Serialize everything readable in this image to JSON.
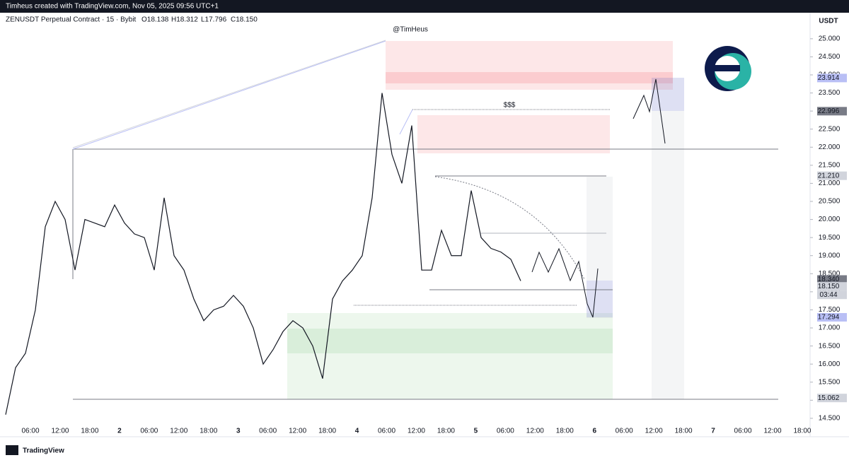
{
  "chart_data": {
    "type": "line",
    "banner": "Timheus created with TradingView.com, Nov 05, 2025 09:56 UTC+1",
    "title": "ZENUSDT Perpetual Contract · 15 · Bybit",
    "ohlc": [
      "O18.138",
      "H18.312",
      "L17.796",
      "C18.150"
    ],
    "currency": "USDT",
    "author": "@TimHeus",
    "annotation": "$$$",
    "brand": "TradingView",
    "countdown": "03:44",
    "color": "#131722",
    "ylim": [
      13.99,
      25.72
    ],
    "yticks": [
      {
        "value": 14.5,
        "label": "14.500"
      },
      {
        "value": 15,
        "label": "15.000"
      },
      {
        "value": 15.5,
        "label": "15.500"
      },
      {
        "value": 16,
        "label": "16.000"
      },
      {
        "value": 16.5,
        "label": "16.500"
      },
      {
        "value": 17,
        "label": "17.000"
      },
      {
        "value": 17.5,
        "label": "17.500"
      },
      {
        "value": 18,
        "label": "18.000"
      },
      {
        "value": 18.5,
        "label": "18.500"
      },
      {
        "value": 19,
        "label": "19.000"
      },
      {
        "value": 19.5,
        "label": "19.500"
      },
      {
        "value": 20,
        "label": "20.000"
      },
      {
        "value": 20.5,
        "label": "20.500"
      },
      {
        "value": 21,
        "label": "21.000"
      },
      {
        "value": 21.5,
        "label": "21.500"
      },
      {
        "value": 22,
        "label": "22.000"
      },
      {
        "value": 22.5,
        "label": "22.500"
      },
      {
        "value": 23,
        "label": "23.000"
      },
      {
        "value": 23.5,
        "label": "23.500"
      },
      {
        "value": 24,
        "label": "24.000"
      },
      {
        "value": 24.5,
        "label": "24.500"
      },
      {
        "value": 25,
        "label": "25.000"
      }
    ],
    "xticks": [
      "06:00",
      "12:00",
      "18:00",
      "2",
      "06:00",
      "12:00",
      "18:00",
      "3",
      "06:00",
      "12:00",
      "18:00",
      "4",
      "06:00",
      "12:00",
      "18:00",
      "5",
      "06:00",
      "12:00",
      "18:00",
      "6",
      "06:00",
      "12:00",
      "18:00",
      "7",
      "06:00",
      "12:00",
      "18:00"
    ],
    "price_labels": [
      {
        "value": 23.914,
        "label": "23.914",
        "color": "#b9bff5"
      },
      {
        "value": 22.996,
        "label": "22.996",
        "color": "#787b86"
      },
      {
        "value": 21.21,
        "label": "21.210",
        "color": "#d1d4dc"
      },
      {
        "value": 18.34,
        "label": "18.340",
        "color": "#787b86"
      },
      {
        "value": 18.15,
        "label": "18.150",
        "color": "#d1d4dc"
      },
      {
        "value": 17.294,
        "label": "17.294",
        "color": "#b9bff5"
      },
      {
        "value": 15.062,
        "label": "15.062",
        "color": "#d1d4dc"
      }
    ],
    "series": [
      {
        "name": "ZENUSDT",
        "values": [
          14.6,
          15.9,
          16.3,
          17.5,
          19.8,
          20.5,
          20.0,
          18.6,
          20.0,
          19.9,
          19.8,
          20.4,
          19.9,
          19.6,
          19.5,
          18.6,
          20.6,
          19.0,
          18.6,
          17.8,
          17.2,
          17.5,
          17.6,
          17.9,
          17.6,
          17.0,
          16.0,
          16.4,
          16.9,
          17.2,
          17.0,
          16.5,
          15.6,
          17.8,
          18.3,
          18.6,
          19.0,
          20.6,
          23.5,
          21.8,
          21.0,
          22.6,
          18.6,
          18.6,
          19.7,
          19.0,
          19.0,
          20.8,
          19.5,
          19.2,
          19.1,
          18.9,
          18.3
        ]
      }
    ]
  }
}
